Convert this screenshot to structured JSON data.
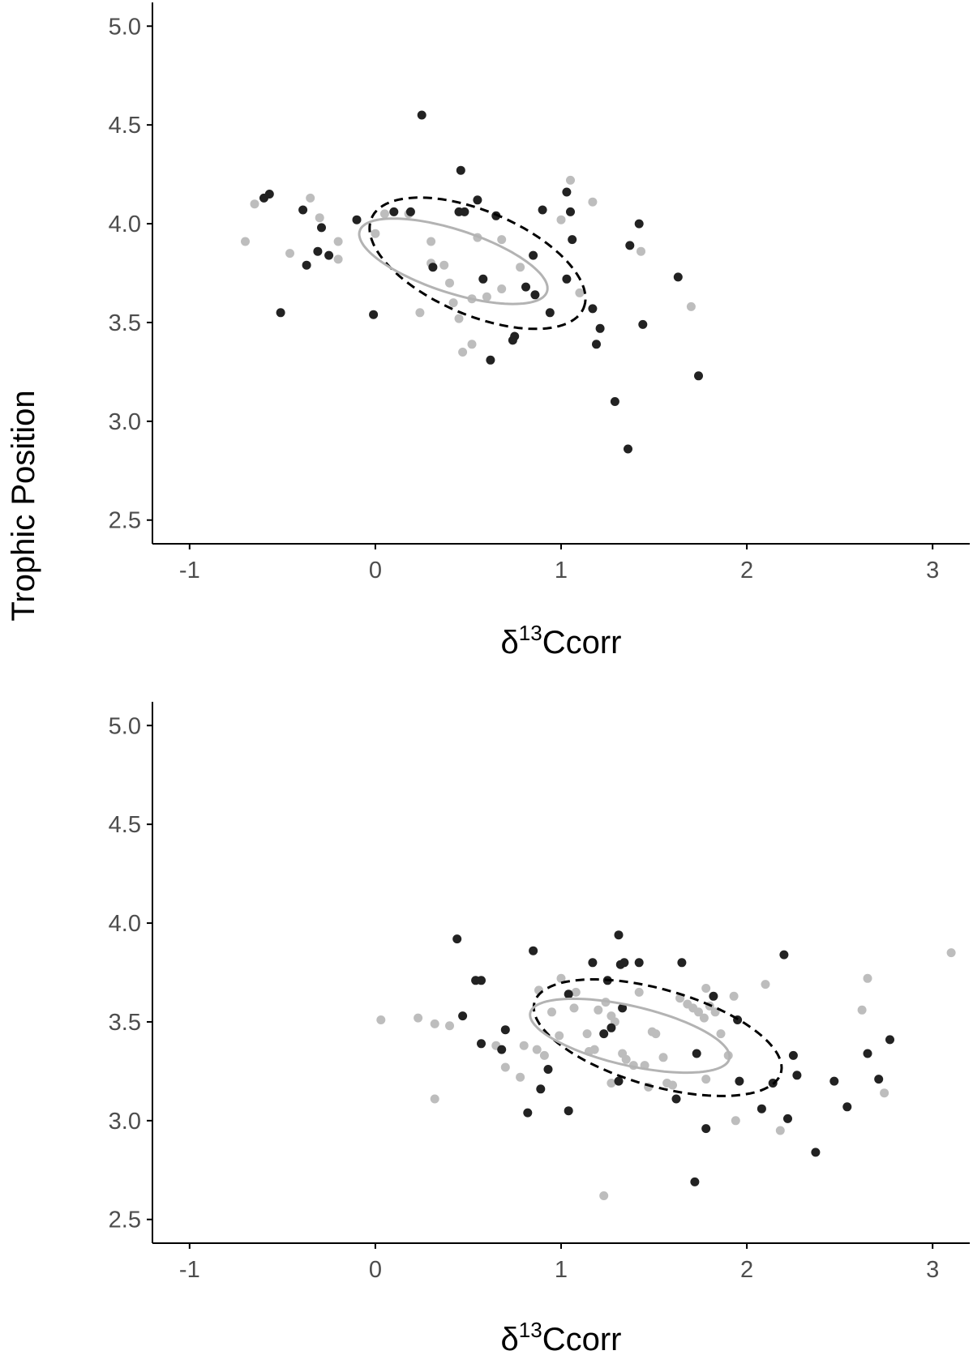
{
  "figure": {
    "shared_ylabel": "Trophic Position"
  },
  "chart_data": [
    {
      "type": "scatter",
      "title": "",
      "xlabel": {
        "prefix": "δ",
        "sup": "13",
        "suffix": "Ccorr"
      },
      "ylabel": "Trophic Position",
      "xlim": [
        -1.2,
        3.2
      ],
      "ylim": [
        2.38,
        5.12
      ],
      "xticks": [
        -1,
        0,
        1,
        2,
        3
      ],
      "xtick_labels": [
        "-1",
        "0",
        "1",
        "2",
        "3"
      ],
      "yticks": [
        2.5,
        3.0,
        3.5,
        4.0,
        4.5,
        5.0
      ],
      "ytick_labels": [
        "2.5",
        "3.0",
        "3.5",
        "4.0",
        "4.5",
        "5.0"
      ],
      "grid": false,
      "legend": "none",
      "series": [
        {
          "color": "#222222",
          "points": [
            [
              0.25,
              4.55
            ],
            [
              0.46,
              4.27
            ],
            [
              1.03,
              4.16
            ],
            [
              -0.57,
              4.15
            ],
            [
              -0.6,
              4.13
            ],
            [
              0.55,
              4.12
            ],
            [
              -0.39,
              4.07
            ],
            [
              0.1,
              4.06
            ],
            [
              0.19,
              4.06
            ],
            [
              0.45,
              4.06
            ],
            [
              0.48,
              4.06
            ],
            [
              0.9,
              4.07
            ],
            [
              1.05,
              4.06
            ],
            [
              0.65,
              4.04
            ],
            [
              -0.1,
              4.02
            ],
            [
              1.42,
              4.0
            ],
            [
              -0.29,
              3.98
            ],
            [
              1.06,
              3.92
            ],
            [
              1.37,
              3.89
            ],
            [
              -0.31,
              3.86
            ],
            [
              -0.25,
              3.84
            ],
            [
              0.85,
              3.84
            ],
            [
              -0.37,
              3.79
            ],
            [
              0.31,
              3.78
            ],
            [
              1.63,
              3.73
            ],
            [
              0.58,
              3.72
            ],
            [
              1.03,
              3.72
            ],
            [
              0.81,
              3.68
            ],
            [
              0.86,
              3.64
            ],
            [
              -0.51,
              3.55
            ],
            [
              -0.01,
              3.54
            ],
            [
              0.94,
              3.55
            ],
            [
              1.17,
              3.57
            ],
            [
              1.44,
              3.49
            ],
            [
              1.21,
              3.47
            ],
            [
              0.75,
              3.43
            ],
            [
              0.74,
              3.41
            ],
            [
              1.19,
              3.39
            ],
            [
              0.62,
              3.31
            ],
            [
              1.74,
              3.23
            ],
            [
              1.29,
              3.1
            ],
            [
              1.36,
              2.86
            ]
          ]
        },
        {
          "color": "#bdbdbd",
          "points": [
            [
              -0.65,
              4.1
            ],
            [
              -0.35,
              4.13
            ],
            [
              -0.3,
              4.03
            ],
            [
              0.05,
              4.05
            ],
            [
              0.18,
              4.05
            ],
            [
              1.05,
              4.22
            ],
            [
              1.17,
              4.11
            ],
            [
              1.0,
              4.02
            ],
            [
              -0.7,
              3.91
            ],
            [
              -0.2,
              3.91
            ],
            [
              0.3,
              3.91
            ],
            [
              0.55,
              3.93
            ],
            [
              0.68,
              3.92
            ],
            [
              -0.46,
              3.85
            ],
            [
              -0.2,
              3.82
            ],
            [
              -0.0,
              3.95
            ],
            [
              0.3,
              3.8
            ],
            [
              0.37,
              3.79
            ],
            [
              0.78,
              3.78
            ],
            [
              0.4,
              3.7
            ],
            [
              0.68,
              3.67
            ],
            [
              0.52,
              3.62
            ],
            [
              0.6,
              3.63
            ],
            [
              0.42,
              3.6
            ],
            [
              1.1,
              3.65
            ],
            [
              0.24,
              3.55
            ],
            [
              0.45,
              3.52
            ],
            [
              1.7,
              3.58
            ],
            [
              0.52,
              3.39
            ],
            [
              0.47,
              3.35
            ],
            [
              1.43,
              3.86
            ]
          ]
        }
      ],
      "ellipses": [
        {
          "style": "dashed",
          "color": "#000000",
          "center": [
            0.55,
            3.8
          ],
          "semi_major": 0.62,
          "semi_minor": 0.28,
          "angle_deg": -23
        },
        {
          "style": "solid",
          "color": "#b3b3b3",
          "center": [
            0.42,
            3.81
          ],
          "semi_major": 0.53,
          "semi_minor": 0.17,
          "angle_deg": -18
        }
      ]
    },
    {
      "type": "scatter",
      "title": "",
      "xlabel": {
        "prefix": "δ",
        "sup": "13",
        "suffix": "Ccorr"
      },
      "ylabel": "Trophic Position",
      "xlim": [
        -1.2,
        3.2
      ],
      "ylim": [
        2.38,
        5.12
      ],
      "xticks": [
        -1,
        0,
        1,
        2,
        3
      ],
      "xtick_labels": [
        "-1",
        "0",
        "1",
        "2",
        "3"
      ],
      "yticks": [
        2.5,
        3.0,
        3.5,
        4.0,
        4.5,
        5.0
      ],
      "ytick_labels": [
        "2.5",
        "3.0",
        "3.5",
        "4.0",
        "4.5",
        "5.0"
      ],
      "grid": false,
      "legend": "none",
      "series": [
        {
          "color": "#222222",
          "points": [
            [
              0.44,
              3.92
            ],
            [
              1.31,
              3.94
            ],
            [
              0.85,
              3.86
            ],
            [
              2.2,
              3.84
            ],
            [
              1.17,
              3.8
            ],
            [
              1.32,
              3.79
            ],
            [
              1.34,
              3.8
            ],
            [
              1.42,
              3.8
            ],
            [
              1.65,
              3.8
            ],
            [
              1.25,
              3.71
            ],
            [
              0.54,
              3.71
            ],
            [
              0.57,
              3.71
            ],
            [
              1.82,
              3.63
            ],
            [
              1.04,
              3.64
            ],
            [
              1.33,
              3.57
            ],
            [
              0.47,
              3.53
            ],
            [
              1.95,
              3.51
            ],
            [
              1.27,
              3.47
            ],
            [
              0.7,
              3.46
            ],
            [
              1.23,
              3.44
            ],
            [
              0.57,
              3.39
            ],
            [
              0.68,
              3.36
            ],
            [
              1.73,
              3.34
            ],
            [
              2.25,
              3.33
            ],
            [
              2.65,
              3.34
            ],
            [
              2.77,
              3.41
            ],
            [
              0.93,
              3.26
            ],
            [
              2.27,
              3.23
            ],
            [
              1.31,
              3.2
            ],
            [
              1.96,
              3.2
            ],
            [
              2.47,
              3.2
            ],
            [
              2.71,
              3.21
            ],
            [
              2.14,
              3.19
            ],
            [
              0.89,
              3.16
            ],
            [
              1.62,
              3.11
            ],
            [
              2.54,
              3.07
            ],
            [
              1.04,
              3.05
            ],
            [
              2.08,
              3.06
            ],
            [
              0.82,
              3.04
            ],
            [
              2.22,
              3.01
            ],
            [
              1.78,
              2.96
            ],
            [
              2.37,
              2.84
            ],
            [
              1.72,
              2.69
            ]
          ]
        },
        {
          "color": "#bdbdbd",
          "points": [
            [
              0.03,
              3.51
            ],
            [
              0.23,
              3.52
            ],
            [
              0.32,
              3.49
            ],
            [
              0.4,
              3.48
            ],
            [
              0.32,
              3.11
            ],
            [
              0.65,
              3.38
            ],
            [
              0.8,
              3.38
            ],
            [
              0.87,
              3.36
            ],
            [
              0.91,
              3.33
            ],
            [
              0.7,
              3.27
            ],
            [
              0.78,
              3.22
            ],
            [
              0.88,
              3.66
            ],
            [
              0.95,
              3.55
            ],
            [
              0.99,
              3.43
            ],
            [
              1.0,
              3.72
            ],
            [
              1.08,
              3.65
            ],
            [
              1.14,
              3.44
            ],
            [
              1.18,
              3.36
            ],
            [
              1.2,
              3.56
            ],
            [
              1.24,
              3.6
            ],
            [
              1.27,
              3.53
            ],
            [
              1.29,
              3.5
            ],
            [
              1.33,
              3.34
            ],
            [
              1.35,
              3.31
            ],
            [
              1.39,
              3.28
            ],
            [
              1.45,
              3.28
            ],
            [
              1.49,
              3.45
            ],
            [
              1.51,
              3.44
            ],
            [
              1.55,
              3.32
            ],
            [
              1.6,
              3.18
            ],
            [
              1.64,
              3.62
            ],
            [
              1.68,
              3.59
            ],
            [
              1.71,
              3.57
            ],
            [
              1.74,
              3.55
            ],
            [
              1.77,
              3.52
            ],
            [
              1.8,
              3.58
            ],
            [
              1.83,
              3.55
            ],
            [
              1.86,
              3.44
            ],
            [
              1.9,
              3.33
            ],
            [
              1.93,
              3.63
            ],
            [
              1.47,
              3.17
            ],
            [
              1.57,
              3.19
            ],
            [
              1.78,
              3.21
            ],
            [
              1.94,
              3.0
            ],
            [
              2.1,
              3.69
            ],
            [
              2.18,
              2.95
            ],
            [
              2.62,
              3.56
            ],
            [
              2.65,
              3.72
            ],
            [
              2.74,
              3.14
            ],
            [
              1.23,
              2.62
            ],
            [
              1.27,
              3.19
            ],
            [
              1.78,
              3.67
            ],
            [
              1.07,
              3.57
            ],
            [
              3.1,
              3.85
            ],
            [
              1.15,
              3.35
            ],
            [
              1.42,
              3.65
            ]
          ]
        }
      ],
      "ellipses": [
        {
          "style": "dashed",
          "color": "#000000",
          "center": [
            1.52,
            3.42
          ],
          "semi_major": 0.69,
          "semi_minor": 0.26,
          "angle_deg": -16
        },
        {
          "style": "solid",
          "color": "#b3b3b3",
          "center": [
            1.37,
            3.43
          ],
          "semi_major": 0.55,
          "semi_minor": 0.16,
          "angle_deg": -13
        }
      ]
    }
  ]
}
